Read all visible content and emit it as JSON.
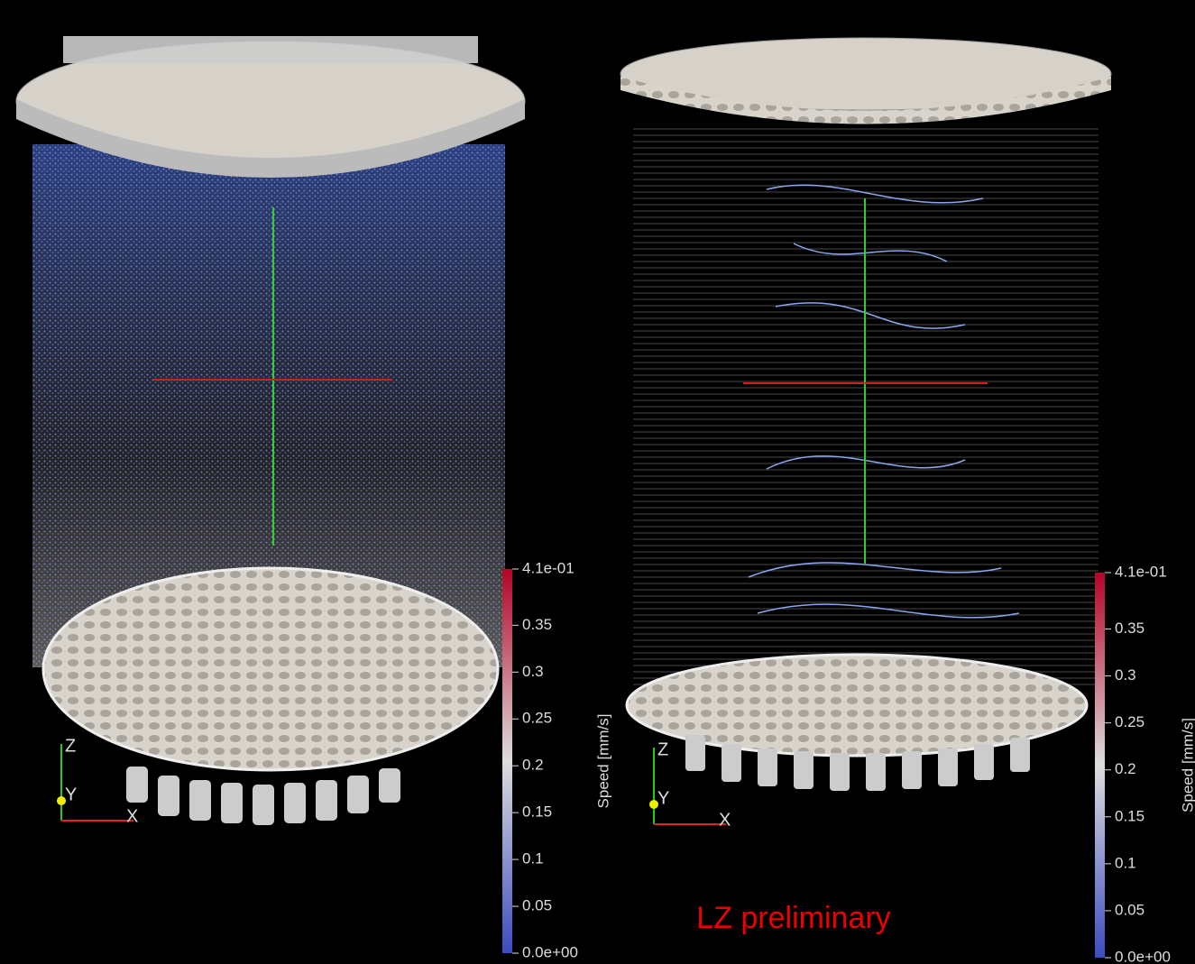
{
  "panels": [
    {
      "triad": {
        "z": "Z",
        "y": "Y",
        "x": "X"
      },
      "colorbar": {
        "title": "Speed [mm/s]",
        "range": [
          0,
          0.41
        ],
        "ticks": [
          {
            "value": 0.41,
            "label": "4.1e-01"
          },
          0.35,
          0.3,
          0.25,
          0.2,
          0.15,
          0.1,
          0.05,
          {
            "value": 0,
            "label": "0.0e+00"
          }
        ]
      }
    },
    {
      "triad": {
        "z": "Z",
        "y": "Y",
        "x": "X"
      },
      "colorbar": {
        "title": "Speed [mm/s]",
        "range": [
          0,
          0.41
        ],
        "ticks": [
          {
            "value": 0.41,
            "label": "4.1e-01"
          },
          0.35,
          0.3,
          0.25,
          0.2,
          0.15,
          0.1,
          0.05,
          {
            "value": 0,
            "label": "0.0e+00"
          }
        ]
      }
    }
  ],
  "annotation": "LZ preliminary"
}
